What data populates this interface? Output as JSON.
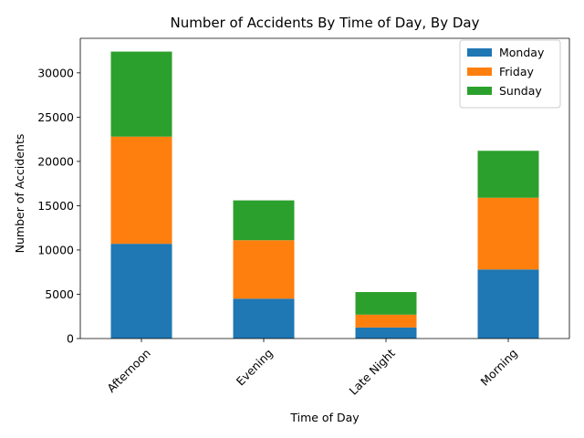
{
  "chart_data": {
    "type": "bar",
    "stacked": true,
    "title": "Number of Accidents By Time of Day, By Day",
    "xlabel": "Time of Day",
    "ylabel": "Number of Accidents",
    "categories": [
      "Afternoon",
      "Evening",
      "Late Night",
      "Morning"
    ],
    "series": [
      {
        "name": "Monday",
        "color": "#1f77b4",
        "values": [
          10700,
          4500,
          1250,
          7800
        ]
      },
      {
        "name": "Friday",
        "color": "#ff7f0e",
        "values": [
          12100,
          6600,
          1450,
          8100
        ]
      },
      {
        "name": "Sunday",
        "color": "#2ca02c",
        "values": [
          9600,
          4500,
          2550,
          5300
        ]
      }
    ],
    "ylim": [
      0,
      33900
    ],
    "yticks": [
      0,
      5000,
      10000,
      15000,
      20000,
      25000,
      30000
    ],
    "xtick_rotation": 45,
    "grid": false,
    "legend_position": "upper right"
  }
}
